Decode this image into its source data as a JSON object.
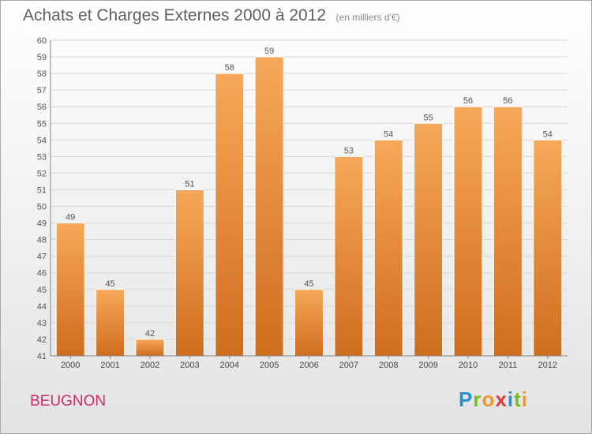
{
  "header": {
    "title": "Achats et Charges Externes 2000 à 2012",
    "unit": "(en milliers d'€)"
  },
  "commune": "BEUGNON",
  "logo": {
    "text": "Proxiti",
    "letters": [
      {
        "ch": "P",
        "color": "#2a8fd0"
      },
      {
        "ch": "r",
        "color": "#7bb82a"
      },
      {
        "ch": "o",
        "color": "#f0962e"
      },
      {
        "ch": "x",
        "color": "#e23a3a"
      },
      {
        "ch": "i",
        "color": "#2a8fd0"
      },
      {
        "ch": "t",
        "color": "#7bb82a"
      },
      {
        "ch": "i",
        "color": "#f0962e"
      }
    ]
  },
  "chart_data": {
    "type": "bar",
    "title": "Achats et Charges Externes 2000 à 2012",
    "subtitle": "(en milliers d'€)",
    "categories": [
      "2000",
      "2001",
      "2002",
      "2003",
      "2004",
      "2005",
      "2006",
      "2007",
      "2008",
      "2009",
      "2010",
      "2011",
      "2012"
    ],
    "values": [
      49,
      45,
      42,
      51,
      58,
      59,
      45,
      53,
      54,
      55,
      56,
      56,
      54
    ],
    "ylim": [
      41,
      60
    ],
    "yticks": [
      41,
      42,
      43,
      44,
      45,
      46,
      47,
      48,
      49,
      50,
      51,
      52,
      53,
      54,
      55,
      56,
      57,
      58,
      59,
      60
    ],
    "grid": true,
    "legend": "none",
    "bar_color_light": "#f7a85a",
    "bar_color_dark": "#cf6d1e"
  }
}
